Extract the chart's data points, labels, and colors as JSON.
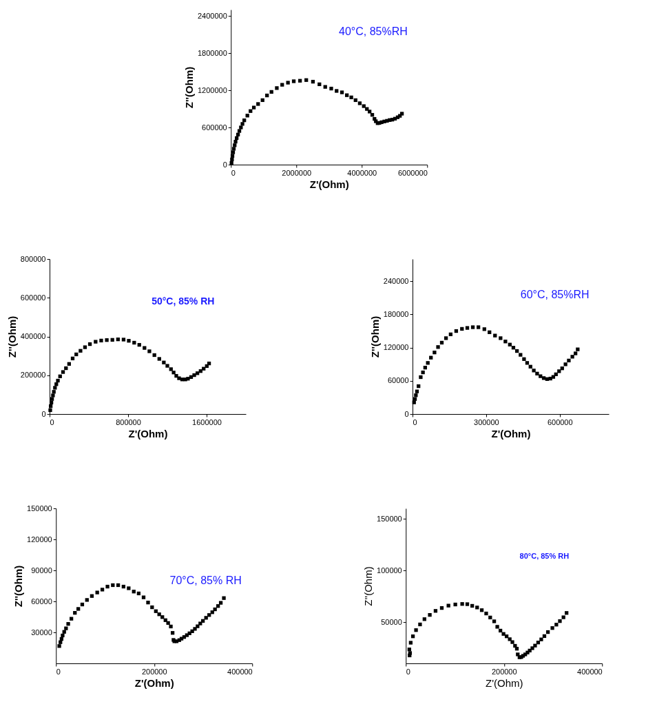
{
  "chart_data": [
    {
      "type": "scatter",
      "xlabel": "Z'(Ohm)",
      "ylabel": "Z''(Ohm)",
      "annotations": [
        "40°C, 85%RH"
      ],
      "marker": "square",
      "grid": false,
      "xlim": [
        0,
        6000000
      ],
      "xticks": [
        0,
        2000000,
        4000000,
        6000000
      ],
      "ylim": [
        0,
        2500000
      ],
      "yticks": [
        0,
        600000,
        1200000,
        1800000,
        2400000
      ],
      "series": [
        {
          "color": "#000000",
          "x": [
            20000,
            34000,
            48000,
            68000,
            89000,
            116000,
            143000,
            177000,
            218000,
            259000,
            307000,
            354000,
            409000,
            504000,
            600000,
            702000,
            832000,
            968000,
            1104000,
            1241000,
            1404000,
            1568000,
            1745000,
            1922000,
            2113000,
            2304000,
            2509000,
            2706000,
            2884000,
            3068000,
            3231000,
            3395000,
            3545000,
            3681000,
            3811000,
            3940000,
            4063000,
            4158000,
            4240000,
            4322000,
            4390000,
            4431000,
            4486000,
            4540000,
            4608000,
            4690000,
            4772000,
            4854000,
            4935000,
            5017000,
            5099000,
            5167000,
            5229000
          ],
          "values": [
            27000,
            84000,
            141000,
            199000,
            256000,
            313000,
            371000,
            428000,
            485000,
            543000,
            600000,
            657000,
            715000,
            791000,
            864000,
            921000,
            978000,
            1040000,
            1116000,
            1173000,
            1235000,
            1288000,
            1322000,
            1345000,
            1353000,
            1364000,
            1338000,
            1296000,
            1254000,
            1227000,
            1189000,
            1166000,
            1120000,
            1085000,
            1040000,
            990000,
            944000,
            898000,
            856000,
            803000,
            738000,
            700000,
            669000,
            673000,
            684000,
            696000,
            707000,
            719000,
            726000,
            741000,
            764000,
            787000,
            822000
          ]
        }
      ]
    },
    {
      "type": "scatter",
      "xlabel": "Z'(Ohm)",
      "ylabel": "Z''(Ohm)",
      "annotations": [
        "50°C, 85% RH"
      ],
      "marker": "square",
      "grid": false,
      "xlim": [
        0,
        2000000
      ],
      "xticks": [
        0,
        800000,
        1600000
      ],
      "ylim": [
        0,
        800000
      ],
      "yticks": [
        0,
        200000,
        400000,
        600000,
        800000
      ],
      "series": [
        {
          "color": "#000000",
          "x": [
            6900,
            11400,
            18300,
            25100,
            34300,
            43400,
            54900,
            68600,
            84600,
            107000,
            137000,
            167000,
            199000,
            235000,
            272000,
            315000,
            361000,
            411000,
            469000,
            526000,
            583000,
            640000,
            697000,
            754000,
            807000,
            862000,
            914000,
            967000,
            1017000,
            1068000,
            1118000,
            1164000,
            1200000,
            1237000,
            1264000,
            1291000,
            1319000,
            1351000,
            1383000,
            1410000,
            1442000,
            1474000,
            1506000,
            1539000,
            1570000,
            1602000,
            1625000
          ],
          "values": [
            19700,
            40600,
            59100,
            77600,
            96000,
            114500,
            135400,
            153900,
            172300,
            194500,
            216700,
            236400,
            258500,
            286800,
            307800,
            326200,
            344700,
            360700,
            373000,
            379100,
            381600,
            382800,
            385300,
            384100,
            377900,
            368100,
            357000,
            341000,
            323800,
            304100,
            284400,
            265900,
            248700,
            231400,
            214200,
            197000,
            184600,
            178500,
            178500,
            182200,
            190800,
            200700,
            210500,
            221600,
            233900,
            247400,
            261000
          ]
        }
      ]
    },
    {
      "type": "scatter",
      "xlabel": "Z'(Ohm)",
      "ylabel": "Z''(Ohm)",
      "annotations": [
        "60°C, 85%RH"
      ],
      "marker": "square",
      "grid": false,
      "xlim": [
        0,
        800000
      ],
      "xticks": [
        0,
        300000,
        600000
      ],
      "ylim": [
        0,
        280000
      ],
      "yticks": [
        0,
        60000,
        120000,
        180000,
        240000
      ],
      "series": [
        {
          "color": "#000000",
          "x": [
            6300,
            9900,
            13600,
            18100,
            24400,
            33400,
            42500,
            51500,
            62300,
            75000,
            89500,
            104000,
            119300,
            136400,
            155400,
            178000,
            201500,
            223200,
            245800,
            268400,
            292800,
            313600,
            336200,
            358800,
            378600,
            396700,
            411100,
            425600,
            440100,
            454500,
            467200,
            480700,
            494300,
            507800,
            521400,
            534900,
            548500,
            562000,
            573800,
            584600,
            597300,
            609900,
            623500,
            637000,
            651500,
            664200,
            673200
          ],
          "values": [
            21000,
            27100,
            33900,
            40800,
            50300,
            66600,
            75200,
            83800,
            92300,
            101800,
            111200,
            121000,
            128900,
            137000,
            143900,
            149900,
            153800,
            155500,
            156800,
            156800,
            153300,
            147700,
            141700,
            137000,
            131000,
            125400,
            119800,
            113800,
            106900,
            99200,
            92300,
            85500,
            78600,
            73000,
            68300,
            64900,
            63100,
            64000,
            67000,
            71700,
            77300,
            82500,
            89800,
            96600,
            103500,
            109500,
            116800
          ]
        }
      ]
    },
    {
      "type": "scatter",
      "xlabel": "Z'(Ohm)",
      "ylabel": "Z''(Ohm)",
      "annotations": [
        "70°C, 85% RH"
      ],
      "marker": "square",
      "grid": false,
      "xlim": [
        0,
        400000
      ],
      "xticks": [
        0,
        200000,
        400000
      ],
      "ylim": [
        0,
        150000
      ],
      "yticks": [
        30000,
        60000,
        90000,
        120000,
        150000
      ],
      "series": [
        {
          "color": "#000000",
          "x": [
            6800,
            9100,
            11400,
            13600,
            16800,
            20500,
            25000,
            31400,
            38600,
            45500,
            53600,
            63200,
            73200,
            84100,
            94500,
            105000,
            115900,
            126800,
            137700,
            148200,
            158600,
            168600,
            178600,
            187700,
            195900,
            203600,
            210400,
            216800,
            223200,
            228600,
            234100,
            237700,
            239500,
            241300,
            245900,
            251300,
            255900,
            261300,
            266800,
            272200,
            277700,
            283200,
            288600,
            294100,
            299500,
            305900,
            312200,
            318600,
            324100,
            330400,
            335900,
            342200
          ],
          "values": [
            16800,
            20500,
            23600,
            27000,
            30500,
            33900,
            38200,
            43200,
            48900,
            52700,
            57000,
            61400,
            65200,
            68600,
            71400,
            74300,
            75700,
            75700,
            74300,
            72700,
            69500,
            67700,
            63900,
            58900,
            54300,
            50500,
            47500,
            44800,
            41800,
            39100,
            35700,
            29500,
            22700,
            21400,
            21400,
            22500,
            23900,
            25500,
            27300,
            29100,
            31100,
            33400,
            35900,
            38600,
            41100,
            44100,
            46800,
            49500,
            52300,
            55500,
            58600,
            63200
          ]
        }
      ]
    },
    {
      "type": "scatter",
      "xlabel": "Z'(Ohm)",
      "ylabel": "Z''(Ohm)",
      "annotations": [
        "80°C, 85% RH"
      ],
      "marker": "square",
      "grid": false,
      "xlim": [
        0,
        400000
      ],
      "xticks": [
        0,
        200000,
        400000
      ],
      "ylim": [
        10000,
        160000
      ],
      "yticks": [
        50000,
        100000,
        150000
      ],
      "series": [
        {
          "color": "#000000",
          "x": [
            7700,
            8600,
            7200,
            10000,
            14500,
            20800,
            29000,
            38000,
            48900,
            60600,
            73300,
            86900,
            100900,
            114900,
            125300,
            135300,
            145300,
            154800,
            163800,
            172000,
            180100,
            186400,
            192800,
            199100,
            205400,
            211800,
            217200,
            222600,
            226300,
            228100,
            231700,
            235300,
            238900,
            243400,
            248000,
            252500,
            257900,
            263400,
            269700,
            276000,
            282400,
            289600,
            298700,
            306800,
            314000,
            321300,
            327600
          ],
          "values": [
            17700,
            20000,
            23500,
            30000,
            36200,
            42200,
            47700,
            52800,
            56900,
            60800,
            63600,
            65900,
            67000,
            67500,
            67300,
            65700,
            64100,
            61500,
            58300,
            54400,
            50700,
            45400,
            41700,
            38500,
            36200,
            33400,
            30600,
            27000,
            24200,
            18700,
            15900,
            16100,
            17300,
            18700,
            20500,
            22400,
            24700,
            27200,
            30200,
            33200,
            36400,
            40300,
            44200,
            47500,
            50900,
            54600,
            58800
          ]
        }
      ]
    }
  ]
}
